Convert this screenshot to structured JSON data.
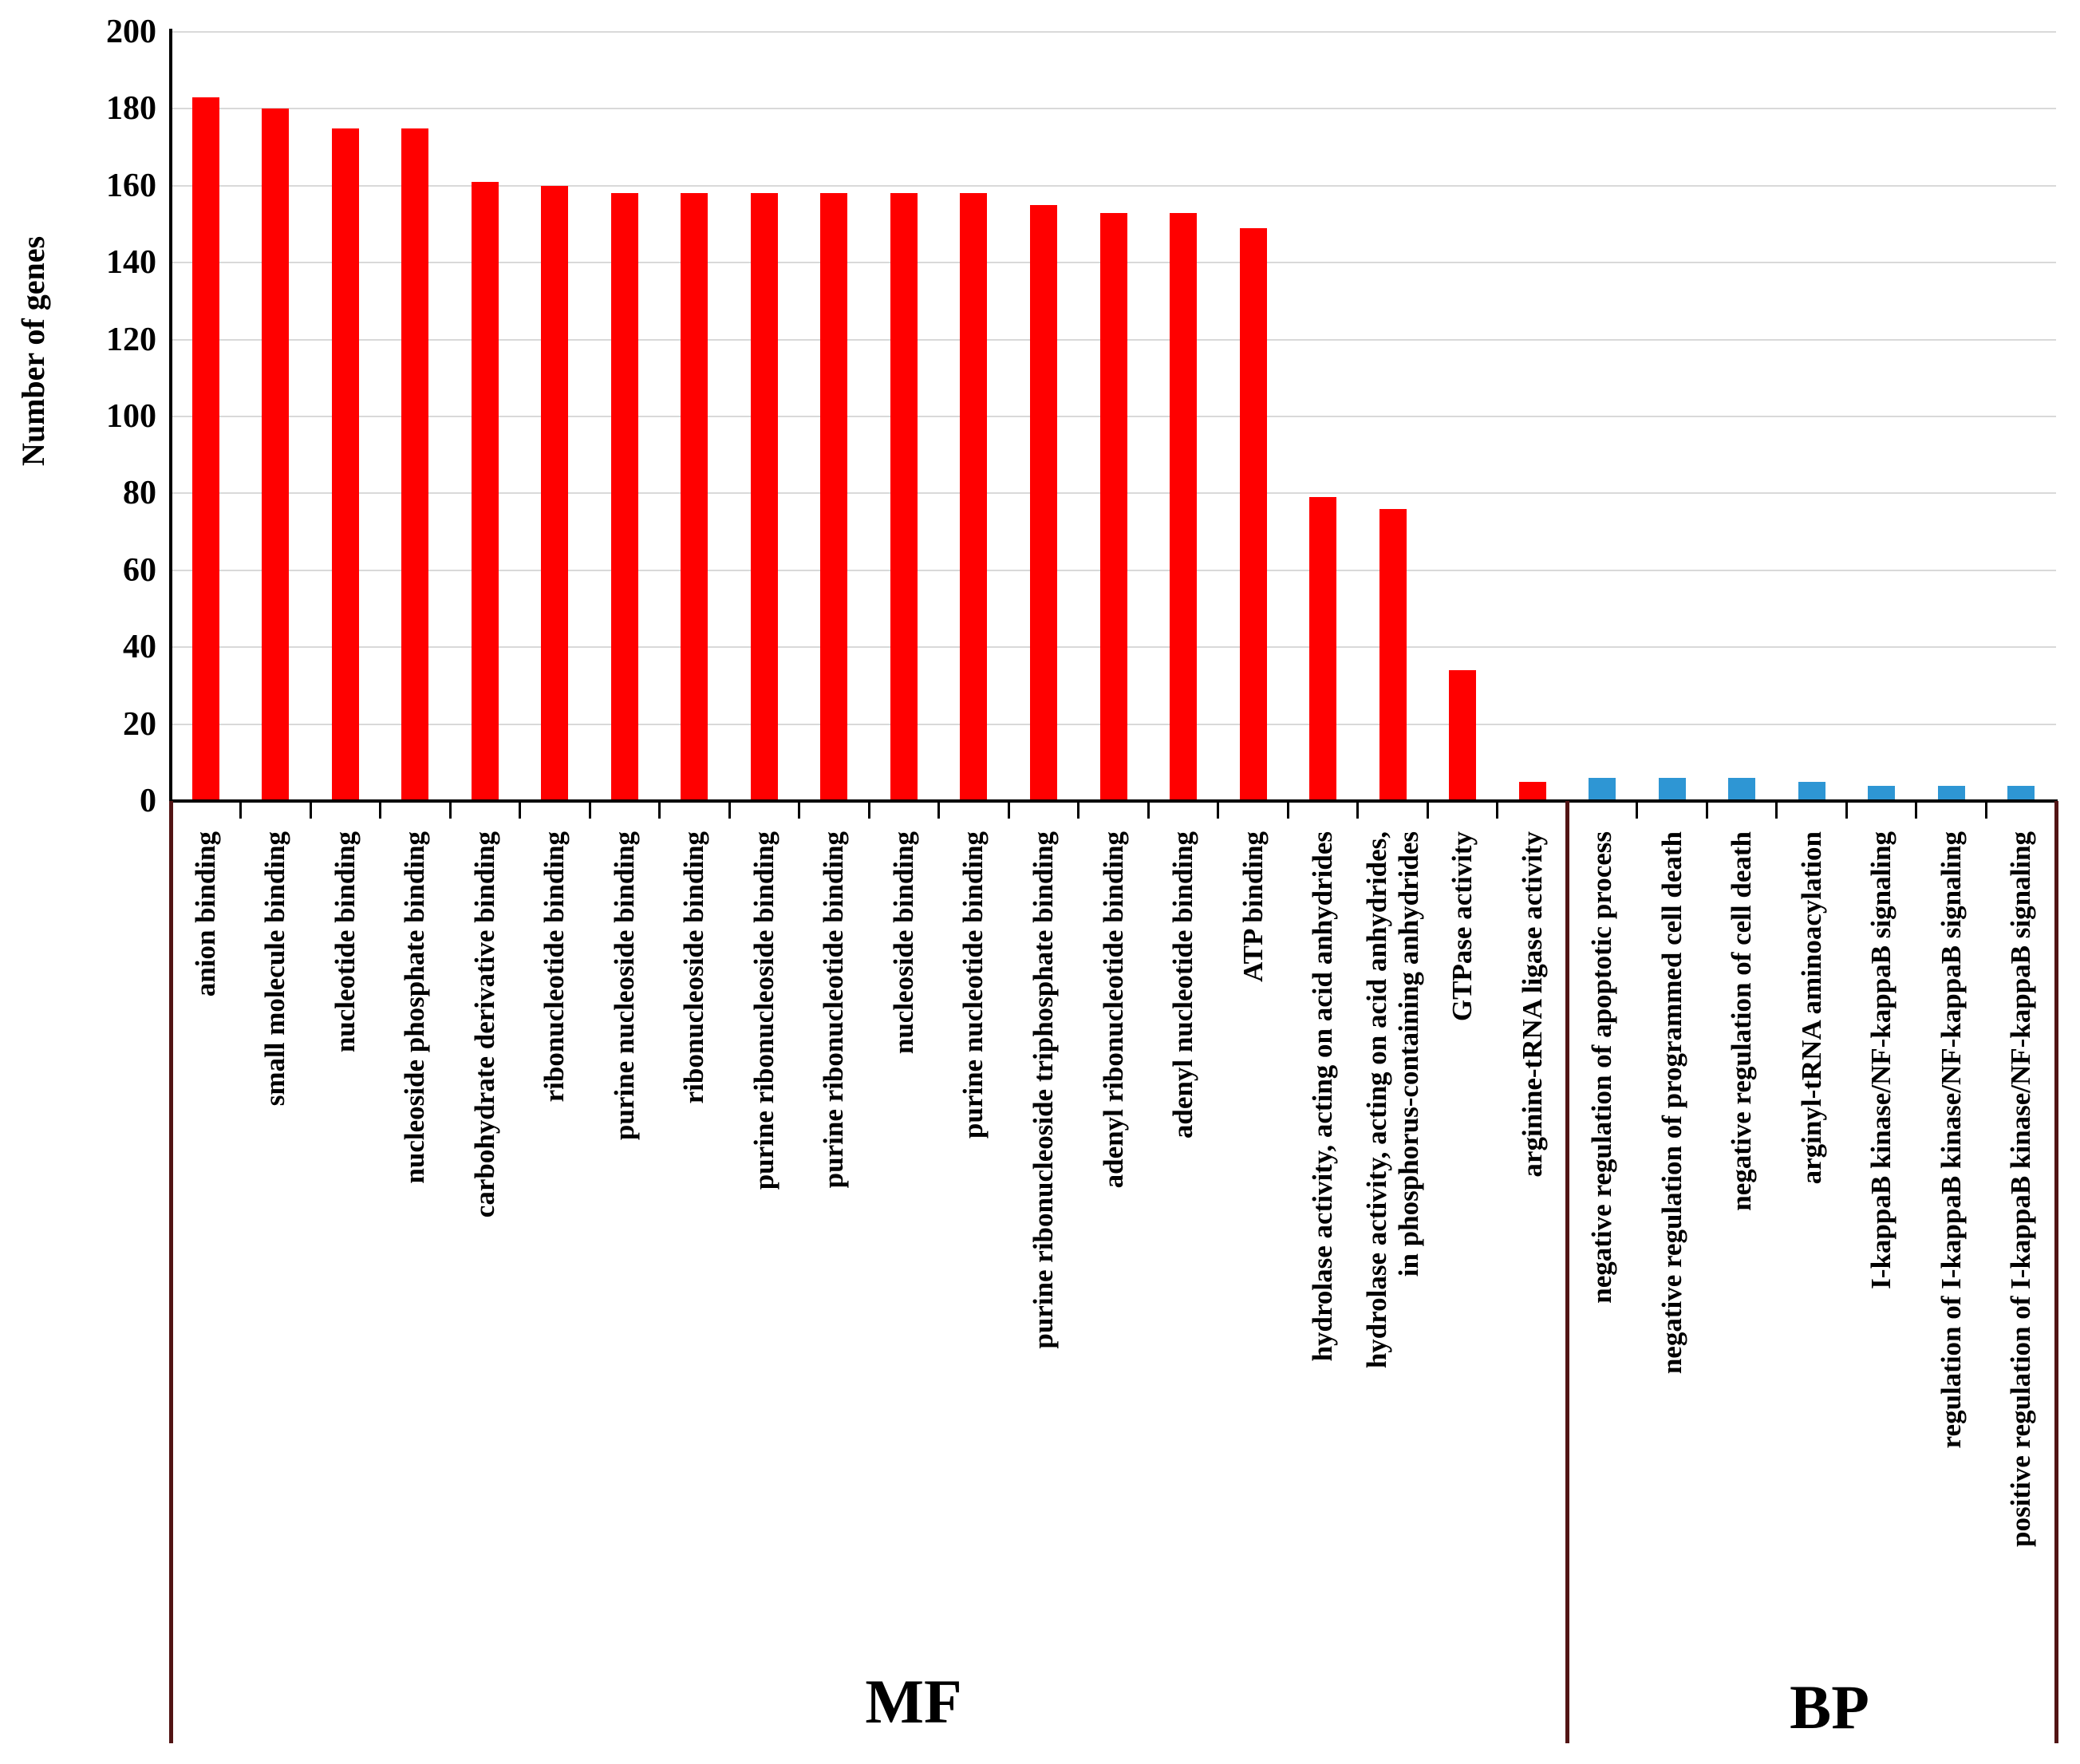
{
  "figure": {
    "y_axis_title": "Number of genes",
    "group_labels": {
      "mf": "MF",
      "bp": "BP"
    }
  },
  "chart_data": {
    "type": "bar",
    "title": "",
    "xlabel": "",
    "ylabel": "Number of genes",
    "ylim": [
      0,
      200
    ],
    "ytick_step": 20,
    "grid": "horizontal gridlines only",
    "legend": "none",
    "layout_note": "vertical bars, x-axis category labels rotated 90deg reading bottom-to-top, two groups separated by dark maroon divider lines",
    "groups": [
      {
        "name": "MF",
        "color": "#FF0000",
        "items": [
          {
            "label": "anion binding",
            "value": 183
          },
          {
            "label": "small molecule binding",
            "value": 180
          },
          {
            "label": "nucleotide binding",
            "value": 175
          },
          {
            "label": "nucleoside phosphate binding",
            "value": 175
          },
          {
            "label": "carbohydrate derivative binding",
            "value": 161
          },
          {
            "label": "ribonucleotide binding",
            "value": 160
          },
          {
            "label": "purine nucleoside binding",
            "value": 158
          },
          {
            "label": "ribonucleoside binding",
            "value": 158
          },
          {
            "label": "purine ribonucleoside binding",
            "value": 158
          },
          {
            "label": "purine ribonucleotide binding",
            "value": 158
          },
          {
            "label": "nucleoside binding",
            "value": 158
          },
          {
            "label": "purine nucleotide binding",
            "value": 158
          },
          {
            "label": "purine ribonucleoside triphosphate binding",
            "value": 155
          },
          {
            "label": "adenyl ribonucleotide binding",
            "value": 153
          },
          {
            "label": "adenyl nucleotide binding",
            "value": 153
          },
          {
            "label": "ATP binding",
            "value": 149
          },
          {
            "label": "hydrolase activity, acting on acid anhydrides",
            "value": 79
          },
          {
            "label": "hydrolase activity, acting on acid anhydrides,\nin phosphorus-containing anhydrides",
            "value": 76
          },
          {
            "label": "GTPase activity",
            "value": 34
          },
          {
            "label": "arginine-tRNA ligase activity",
            "value": 5
          }
        ]
      },
      {
        "name": "BP",
        "color": "#2E96D4",
        "items": [
          {
            "label": "negative regulation of apoptotic process",
            "value": 6
          },
          {
            "label": "negative regulation of programmed cell death",
            "value": 6
          },
          {
            "label": "negative regulation of cell death",
            "value": 6
          },
          {
            "label": "arginyl-tRNA aminoacylation",
            "value": 5
          },
          {
            "label": "I-kappaB kinase/NF-kappaB signaling",
            "value": 4
          },
          {
            "label": "regulation of I-kappaB kinase/NF-kappaB signaling",
            "value": 4
          },
          {
            "label": "positive regulation of I-kappaB kinase/NF-kappaB signaling",
            "value": 4
          }
        ]
      }
    ],
    "colors": {
      "mf_bar": "#FF0000",
      "bp_bar": "#2E96D4",
      "gridline": "#D9D9D9",
      "axis": "#000000",
      "divider": "#521414",
      "text": "#000000",
      "background": "#FFFFFF"
    }
  }
}
